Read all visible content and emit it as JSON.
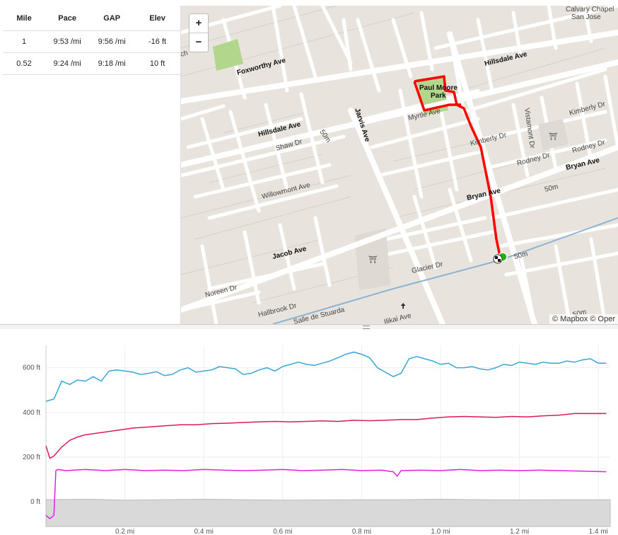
{
  "splits": {
    "headers": [
      "Mile",
      "Pace",
      "GAP",
      "Elev"
    ],
    "rows": [
      [
        "1",
        "9:53 /mi",
        "9:56 /mi",
        "-16 ft"
      ],
      [
        "0.52",
        "9:24 /mi",
        "9:18 /mi",
        "10 ft"
      ]
    ]
  },
  "map": {
    "zoom_in": "+",
    "zoom_out": "−",
    "attribution": "© Mapbox © Oper",
    "route_color": "#ff0000",
    "start_color": "#1db400",
    "labels": {
      "calvary": "Calvary Chapel",
      "san_jose": "San Jose",
      "foxworthy": "Foxworthy Ave",
      "hillsdale_top": "Hillsdale Ave",
      "hillsdale_left": "Hillsdale Ave",
      "paul": "Paul Moore",
      "park": "Park",
      "myrtle": "Myrtle Ave",
      "jarvis": "Jarvis Ave",
      "shaw": "Shaw Dr",
      "kimberly_mid": "Kimberly Dr",
      "vistamont": "Vistamont Dr",
      "kimberly_right": "Kimberly Dr",
      "rodney_mid": "Rodney Dr",
      "rodney_right": "Rodney Dr",
      "bryan_right": "Bryan Ave",
      "bryan_mid": "Bryan Ave",
      "willowmont": "Willowmont Ave",
      "jacob": "Jacob Ave",
      "glacier": "Glacier Dr",
      "noreen": "Noreen Dr",
      "hallbrook": "Hallbrook Dr",
      "salle": "Salle de Stuarda",
      "ikai": "Ilikai Ave",
      "ch": "ch",
      "m50_a": "50m",
      "m50_b": "50m",
      "m50_c": "50m",
      "m50_d": "50m"
    }
  },
  "chart_data": {
    "type": "line",
    "x_unit": "mi",
    "x_ticks": [
      "0.2 mi",
      "0.4 mi",
      "0.6 mi",
      "0.8 mi",
      "1.0 mi",
      "1.2 mi",
      "1.4 mi"
    ],
    "x_tick_values": [
      0.2,
      0.4,
      0.6,
      0.8,
      1.0,
      1.2,
      1.4
    ],
    "y_ticks": [
      "0 ft",
      "200 ft",
      "400 ft",
      "600 ft"
    ],
    "y_tick_values": [
      0,
      200,
      400,
      600
    ],
    "xlim": [
      0,
      1.43
    ],
    "ylim": [
      -110,
      700
    ],
    "series": [
      {
        "color": "#3aa6d8",
        "x": [
          0,
          0.02,
          0.04,
          0.06,
          0.08,
          0.1,
          0.12,
          0.14,
          0.16,
          0.18,
          0.2,
          0.22,
          0.24,
          0.26,
          0.28,
          0.3,
          0.32,
          0.34,
          0.36,
          0.38,
          0.4,
          0.42,
          0.44,
          0.46,
          0.48,
          0.5,
          0.52,
          0.54,
          0.56,
          0.58,
          0.6,
          0.62,
          0.64,
          0.66,
          0.68,
          0.7,
          0.72,
          0.74,
          0.76,
          0.78,
          0.8,
          0.82,
          0.84,
          0.86,
          0.88,
          0.9,
          0.92,
          0.94,
          0.96,
          0.98,
          1.0,
          1.02,
          1.04,
          1.06,
          1.08,
          1.1,
          1.12,
          1.14,
          1.16,
          1.18,
          1.2,
          1.22,
          1.24,
          1.26,
          1.28,
          1.3,
          1.32,
          1.34,
          1.36,
          1.38,
          1.4,
          1.42
        ],
        "y": [
          450,
          460,
          540,
          525,
          545,
          540,
          560,
          540,
          585,
          590,
          585,
          580,
          570,
          575,
          582,
          565,
          570,
          590,
          600,
          580,
          585,
          590,
          605,
          600,
          595,
          570,
          575,
          590,
          600,
          585,
          605,
          615,
          625,
          615,
          610,
          620,
          630,
          645,
          660,
          670,
          660,
          645,
          600,
          580,
          560,
          575,
          640,
          650,
          640,
          630,
          615,
          620,
          600,
          600,
          605,
          595,
          590,
          600,
          615,
          610,
          625,
          620,
          615,
          625,
          620,
          620,
          630,
          625,
          635,
          640,
          620,
          620
        ]
      },
      {
        "color": "#d81b60",
        "x": [
          0,
          0.01,
          0.02,
          0.04,
          0.06,
          0.08,
          0.1,
          0.14,
          0.18,
          0.22,
          0.26,
          0.3,
          0.34,
          0.38,
          0.42,
          0.46,
          0.5,
          0.54,
          0.58,
          0.62,
          0.66,
          0.7,
          0.74,
          0.78,
          0.82,
          0.86,
          0.9,
          0.94,
          0.98,
          1.02,
          1.06,
          1.1,
          1.14,
          1.18,
          1.22,
          1.26,
          1.3,
          1.34,
          1.38,
          1.42
        ],
        "y": [
          250,
          195,
          205,
          245,
          275,
          290,
          300,
          310,
          320,
          330,
          335,
          340,
          345,
          345,
          350,
          352,
          355,
          358,
          360,
          358,
          360,
          362,
          360,
          365,
          363,
          365,
          368,
          368,
          375,
          380,
          382,
          380,
          378,
          382,
          380,
          385,
          388,
          395,
          395,
          395
        ]
      },
      {
        "color": "#e020e0",
        "x": [
          0,
          0.01,
          0.02,
          0.025,
          0.03,
          0.05,
          0.1,
          0.15,
          0.2,
          0.25,
          0.3,
          0.35,
          0.4,
          0.45,
          0.5,
          0.55,
          0.6,
          0.65,
          0.7,
          0.75,
          0.8,
          0.85,
          0.88,
          0.89,
          0.9,
          0.95,
          1.0,
          1.05,
          1.1,
          1.15,
          1.2,
          1.25,
          1.3,
          1.35,
          1.42
        ],
        "y": [
          -60,
          -75,
          -60,
          140,
          145,
          140,
          145,
          140,
          145,
          140,
          142,
          140,
          145,
          142,
          140,
          142,
          145,
          140,
          142,
          145,
          140,
          142,
          135,
          115,
          140,
          142,
          140,
          145,
          140,
          142,
          140,
          142,
          140,
          138,
          135
        ]
      },
      {
        "color": "#d9d9d9",
        "fill": true,
        "x": [
          0,
          0.1,
          0.2,
          0.3,
          0.4,
          0.5,
          0.6,
          0.7,
          0.8,
          0.9,
          1.0,
          1.1,
          1.2,
          1.3,
          1.43
        ],
        "y": [
          10,
          12,
          8,
          10,
          12,
          10,
          8,
          9,
          10,
          10,
          12,
          10,
          9,
          10,
          10
        ]
      }
    ]
  }
}
